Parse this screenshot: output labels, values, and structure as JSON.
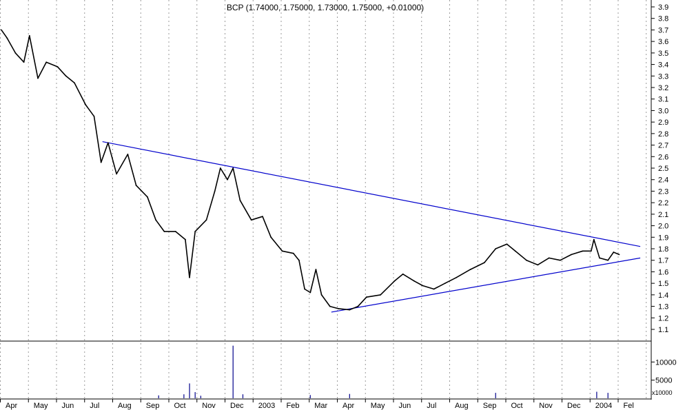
{
  "chart_data": {
    "type": "line",
    "title": "BCP (1.74000, 1.75000, 1.73000, 1.75000, +0.01000)",
    "price_axis": {
      "ylim": [
        1.05,
        3.95
      ],
      "ticks": [
        "1.1",
        "1.2",
        "1.3",
        "1.4",
        "1.5",
        "1.6",
        "1.7",
        "1.8",
        "1.9",
        "2.0",
        "2.1",
        "2.2",
        "2.3",
        "2.4",
        "2.5",
        "2.6",
        "2.7",
        "2.8",
        "2.9",
        "3.0",
        "3.1",
        "3.2",
        "3.3",
        "3.4",
        "3.5",
        "3.6",
        "3.7",
        "3.8",
        "3.9"
      ]
    },
    "volume_axis": {
      "ticks": [
        "5000",
        "10000"
      ],
      "unit_label": "x10000"
    },
    "x_labels": [
      "Apr",
      "May",
      "Jun",
      "Jul",
      "Aug",
      "Sep",
      "Oct",
      "Nov",
      "Dec",
      "2003",
      "Feb",
      "Mar",
      "Apr",
      "May",
      "Jun",
      "Jul",
      "Aug",
      "Sep",
      "Oct",
      "Nov",
      "Dec",
      "2004",
      "Fel"
    ],
    "grid": "vertical dotted at month boundaries",
    "price_series": [
      {
        "month": 0.0,
        "value": 3.7
      },
      {
        "month": 0.2,
        "value": 3.63
      },
      {
        "month": 0.5,
        "value": 3.5
      },
      {
        "month": 0.8,
        "value": 3.42
      },
      {
        "month": 1.0,
        "value": 3.65
      },
      {
        "month": 1.3,
        "value": 3.28
      },
      {
        "month": 1.6,
        "value": 3.42
      },
      {
        "month": 2.0,
        "value": 3.38
      },
      {
        "month": 2.3,
        "value": 3.3
      },
      {
        "month": 2.6,
        "value": 3.24
      },
      {
        "month": 3.0,
        "value": 3.05
      },
      {
        "month": 3.3,
        "value": 2.95
      },
      {
        "month": 3.55,
        "value": 2.55
      },
      {
        "month": 3.8,
        "value": 2.72
      },
      {
        "month": 4.1,
        "value": 2.45
      },
      {
        "month": 4.5,
        "value": 2.62
      },
      {
        "month": 4.8,
        "value": 2.35
      },
      {
        "month": 5.2,
        "value": 2.25
      },
      {
        "month": 5.5,
        "value": 2.05
      },
      {
        "month": 5.8,
        "value": 1.95
      },
      {
        "month": 6.2,
        "value": 1.95
      },
      {
        "month": 6.55,
        "value": 1.88
      },
      {
        "month": 6.7,
        "value": 1.55
      },
      {
        "month": 6.9,
        "value": 1.95
      },
      {
        "month": 7.3,
        "value": 2.05
      },
      {
        "month": 7.6,
        "value": 2.3
      },
      {
        "month": 7.8,
        "value": 2.5
      },
      {
        "month": 8.05,
        "value": 2.4
      },
      {
        "month": 8.25,
        "value": 2.5
      },
      {
        "month": 8.5,
        "value": 2.22
      },
      {
        "month": 8.9,
        "value": 2.05
      },
      {
        "month": 9.3,
        "value": 2.08
      },
      {
        "month": 9.6,
        "value": 1.9
      },
      {
        "month": 10.0,
        "value": 1.78
      },
      {
        "month": 10.4,
        "value": 1.76
      },
      {
        "month": 10.6,
        "value": 1.7
      },
      {
        "month": 10.8,
        "value": 1.45
      },
      {
        "month": 11.0,
        "value": 1.42
      },
      {
        "month": 11.2,
        "value": 1.62
      },
      {
        "month": 11.4,
        "value": 1.4
      },
      {
        "month": 11.7,
        "value": 1.3
      },
      {
        "month": 12.0,
        "value": 1.28
      },
      {
        "month": 12.4,
        "value": 1.27
      },
      {
        "month": 12.7,
        "value": 1.3
      },
      {
        "month": 13.0,
        "value": 1.38
      },
      {
        "month": 13.5,
        "value": 1.4
      },
      {
        "month": 14.0,
        "value": 1.52
      },
      {
        "month": 14.3,
        "value": 1.58
      },
      {
        "month": 14.7,
        "value": 1.52
      },
      {
        "month": 15.0,
        "value": 1.48
      },
      {
        "month": 15.4,
        "value": 1.45
      },
      {
        "month": 15.8,
        "value": 1.5
      },
      {
        "month": 16.2,
        "value": 1.55
      },
      {
        "month": 16.7,
        "value": 1.62
      },
      {
        "month": 17.2,
        "value": 1.68
      },
      {
        "month": 17.6,
        "value": 1.8
      },
      {
        "month": 18.0,
        "value": 1.84
      },
      {
        "month": 18.3,
        "value": 1.78
      },
      {
        "month": 18.7,
        "value": 1.7
      },
      {
        "month": 19.1,
        "value": 1.66
      },
      {
        "month": 19.5,
        "value": 1.72
      },
      {
        "month": 19.9,
        "value": 1.7
      },
      {
        "month": 20.3,
        "value": 1.75
      },
      {
        "month": 20.7,
        "value": 1.78
      },
      {
        "month": 21.0,
        "value": 1.78
      },
      {
        "month": 21.1,
        "value": 1.88
      },
      {
        "month": 21.3,
        "value": 1.72
      },
      {
        "month": 21.6,
        "value": 1.7
      },
      {
        "month": 21.8,
        "value": 1.77
      },
      {
        "month": 22.0,
        "value": 1.75
      }
    ],
    "trendlines": [
      {
        "name": "upper",
        "from": {
          "month": 3.6,
          "value": 2.73
        },
        "to": {
          "month": 22.75,
          "value": 1.82
        }
      },
      {
        "name": "lower",
        "from": {
          "month": 11.75,
          "value": 1.25
        },
        "to": {
          "month": 22.75,
          "value": 1.72
        }
      }
    ],
    "volume_series": [
      {
        "month": 6.7,
        "value": 4100
      },
      {
        "month": 8.25,
        "value": 14500
      },
      {
        "month": 6.9,
        "value": 1700
      },
      {
        "month": 6.5,
        "value": 1100
      },
      {
        "month": 5.6,
        "value": 800
      },
      {
        "month": 7.1,
        "value": 700
      },
      {
        "month": 8.6,
        "value": 1100
      },
      {
        "month": 11.0,
        "value": 900
      },
      {
        "month": 12.4,
        "value": 1200
      },
      {
        "month": 17.6,
        "value": 1500
      },
      {
        "month": 21.2,
        "value": 1800
      },
      {
        "month": 21.6,
        "value": 1500
      }
    ],
    "colors": {
      "price": "#000000",
      "trendline": "#0000cc",
      "volume": "#00008b",
      "grid": "#999999"
    }
  }
}
